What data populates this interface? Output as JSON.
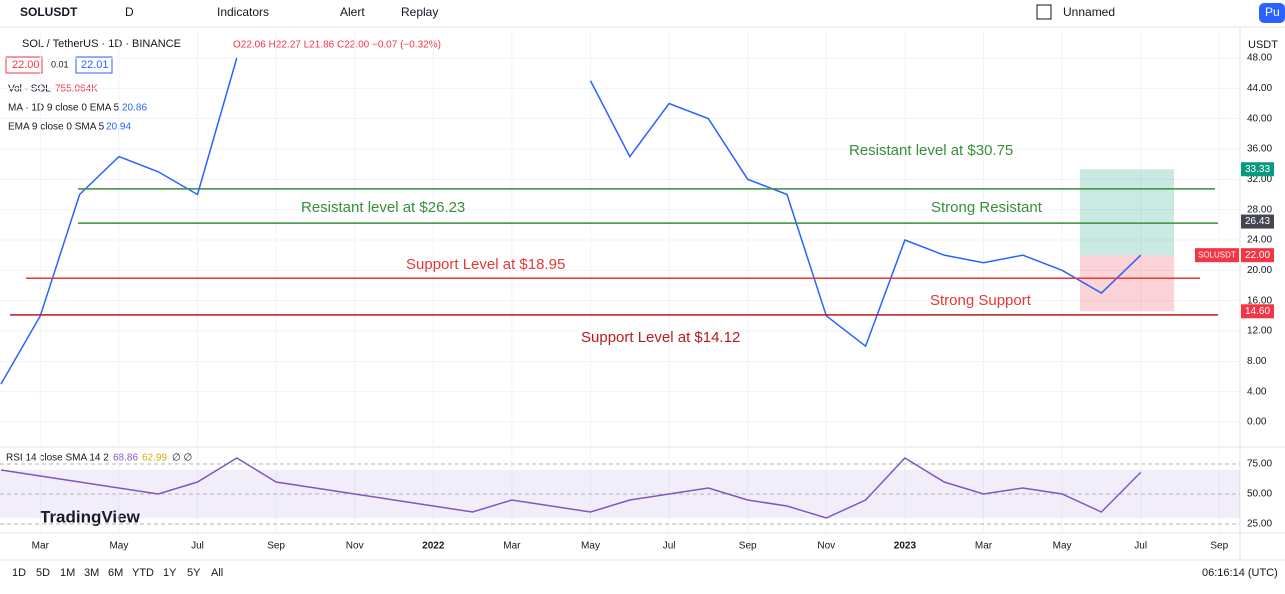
{
  "toolbar": {
    "symbol": "SOLUSDT",
    "interval": "D",
    "indicators": "Indicators",
    "alert": "Alert",
    "replay": "Replay",
    "layout": "Unnamed",
    "user": "Pu"
  },
  "legend": {
    "pair": "SOL / TetherUS · 1D · BINANCE",
    "ohlc": "O22.06 H22.27 L21.86 C22.00 −0.07 (−0.32%)",
    "bid": "22.00",
    "spread": "0.01",
    "ask": "22.01",
    "vol": "Vol · SOL",
    "vol_value": "755.064K",
    "ma": "MA · 1D 9 close 0 EMA 5",
    "ma_value": "20.86",
    "ema": "EMA 9 close 0 SMA 5",
    "ema_value": "20.94",
    "rsi": "RSI 14 close SMA 14 2",
    "rsi_value": "68.86",
    "rsi_sma": "62.99",
    "rsi_extra": "∅ ∅"
  },
  "brand": "TradingView",
  "currency": "USDT",
  "ranges": [
    "1D",
    "5D",
    "1M",
    "3M",
    "6M",
    "YTD",
    "1Y",
    "5Y",
    "All"
  ],
  "clock": "06:16:14 (UTC)",
  "chart_data": {
    "type": "line",
    "color": "#2962ff",
    "categories": [
      null,
      "Mar",
      null,
      "May",
      null,
      "Jul",
      null,
      "Sep",
      null,
      "Nov",
      null,
      "2022",
      null,
      "Mar",
      null,
      "May",
      null,
      "Jul",
      null,
      "Sep",
      null,
      "Nov",
      null,
      "2023",
      null,
      "Mar",
      null,
      "May",
      null,
      "Jul",
      null,
      "Sep"
    ],
    "values": [
      5,
      14,
      30,
      35,
      33,
      30,
      48,
      null,
      null,
      null,
      null,
      null,
      null,
      null,
      null,
      45,
      35,
      42,
      40,
      32,
      30,
      14,
      10,
      24,
      22,
      21,
      22,
      20,
      17,
      22,
      null,
      null
    ],
    "ylim": [
      -2,
      50
    ],
    "yticks": [
      {
        "value": 0,
        "label": "0.00"
      },
      {
        "value": 4,
        "label": "4.00"
      },
      {
        "value": 8,
        "label": "8.00"
      },
      {
        "value": 12,
        "label": "12.00"
      },
      {
        "value": 16,
        "label": "16.00"
      },
      {
        "value": 20,
        "label": "20.00"
      },
      {
        "value": 24,
        "label": "24.00"
      },
      {
        "value": 28,
        "label": "28.00"
      },
      {
        "value": 32,
        "label": "32.00"
      },
      {
        "value": 36,
        "label": "36.00"
      },
      {
        "value": 40,
        "label": "40.00"
      },
      {
        "value": 44,
        "label": "44.00"
      },
      {
        "value": 48,
        "label": "48.00"
      }
    ],
    "levels": [
      {
        "label": "Resistant level at $30.75",
        "value": 30.75,
        "color": "#388e3c"
      },
      {
        "label": "Resistant level at $26.23",
        "value": 26.23,
        "color": "#388e3c"
      },
      {
        "label": "Support Level at $18.95",
        "value": 18.95,
        "color": "#e53935"
      },
      {
        "label": "Support Level at $14.12",
        "value": 14.12,
        "color": "#b71c1c"
      }
    ],
    "notes": [
      "Strong Resistant",
      "Strong Support"
    ],
    "price_labels": [
      {
        "value": 33.33,
        "label": "33.33",
        "color": "#089981"
      },
      {
        "value": 26.43,
        "label": "26.43",
        "color": "#434651"
      },
      {
        "value": 22,
        "label": "22.00",
        "color": "#f23645"
      },
      {
        "value": 14.6,
        "label": "14.60",
        "color": "#f23645"
      }
    ],
    "last_name": "SOLUSDT",
    "rsi": {
      "values": [
        70,
        65,
        60,
        55,
        50,
        60,
        80,
        60,
        55,
        50,
        45,
        40,
        35,
        45,
        40,
        35,
        45,
        50,
        55,
        45,
        40,
        30,
        45,
        80,
        60,
        50,
        55,
        50,
        35,
        68,
        null,
        null
      ],
      "ylim": [
        20,
        85
      ],
      "yticks": [
        {
          "value": 25,
          "label": "25.00"
        },
        {
          "value": 50,
          "label": "50.00"
        },
        {
          "value": 75,
          "label": "75.00"
        }
      ]
    }
  }
}
